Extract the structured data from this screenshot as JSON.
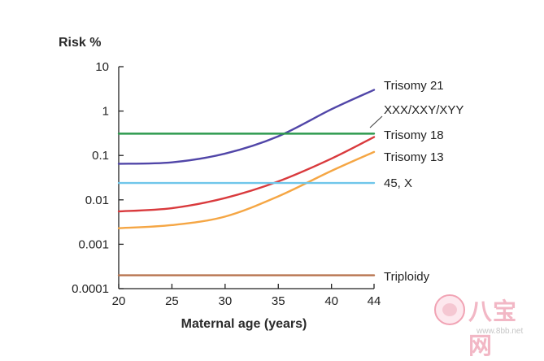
{
  "chart_data": {
    "type": "line",
    "yscale": "log",
    "ylabel": "Risk %",
    "xlabel": "Maternal age (years)",
    "xlim": [
      20,
      44
    ],
    "ylim": [
      0.0001,
      10
    ],
    "x_ticks": [
      20,
      25,
      30,
      35,
      40,
      44
    ],
    "y_ticks": [
      {
        "value": 10,
        "label": "10"
      },
      {
        "value": 1,
        "label": "1"
      },
      {
        "value": 0.1,
        "label": "0.1"
      },
      {
        "value": 0.01,
        "label": "0.01"
      },
      {
        "value": 0.001,
        "label": "0.001"
      },
      {
        "value": 0.0001,
        "label": "0.0001"
      }
    ],
    "series": [
      {
        "name": "Trisomy 21",
        "color": "#5146a8",
        "points": [
          [
            20,
            0.065
          ],
          [
            25,
            0.07
          ],
          [
            30,
            0.11
          ],
          [
            35,
            0.27
          ],
          [
            40,
            1.1
          ],
          [
            44,
            3.0
          ]
        ]
      },
      {
        "name": "XXX/XXY/XYY",
        "color": "#2e9a4f",
        "points": [
          [
            20,
            0.31
          ],
          [
            44,
            0.31
          ]
        ]
      },
      {
        "name": "Trisomy 18",
        "color": "#d93a3d",
        "points": [
          [
            20,
            0.0055
          ],
          [
            25,
            0.0065
          ],
          [
            30,
            0.011
          ],
          [
            35,
            0.026
          ],
          [
            40,
            0.085
          ],
          [
            44,
            0.26
          ]
        ]
      },
      {
        "name": "Trisomy 13",
        "color": "#f5a644",
        "points": [
          [
            20,
            0.0023
          ],
          [
            25,
            0.0027
          ],
          [
            30,
            0.0042
          ],
          [
            35,
            0.012
          ],
          [
            40,
            0.045
          ],
          [
            44,
            0.12
          ]
        ]
      },
      {
        "name": "45, X",
        "color": "#6fc6ea",
        "points": [
          [
            20,
            0.024
          ],
          [
            44,
            0.024
          ]
        ]
      },
      {
        "name": "Triploidy",
        "color": "#b8734e",
        "points": [
          [
            20,
            0.0002
          ],
          [
            44,
            0.0002
          ]
        ]
      }
    ]
  },
  "watermark": {
    "text": "八宝网",
    "url": "www.8bb.net"
  }
}
